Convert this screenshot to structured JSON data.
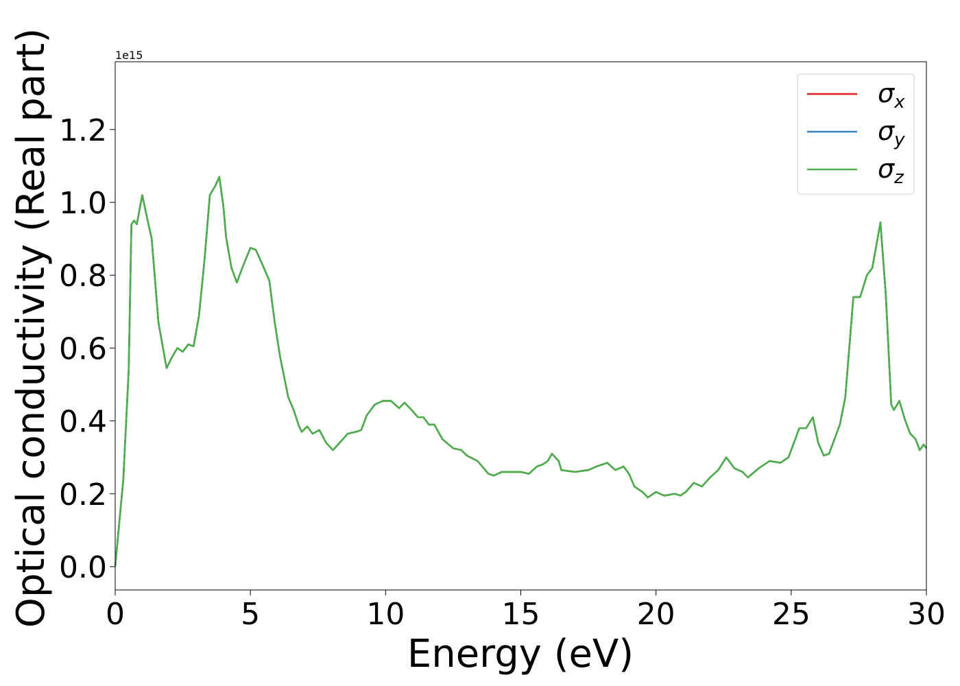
{
  "chart_data": {
    "type": "line",
    "xlabel": "Energy (eV)",
    "ylabel": "Optical conductivity (Real part)",
    "offset_text": "1e15",
    "xlim": [
      0,
      30
    ],
    "ylim": [
      -0.064,
      1.386
    ],
    "xticks": [
      0,
      5,
      10,
      15,
      20,
      25,
      30
    ],
    "yticks": [
      {
        "value": 0,
        "label": "0.0"
      },
      0.2,
      0.4,
      0.6,
      0.8,
      {
        "value": 1,
        "label": "1.0"
      },
      1.2
    ],
    "legend": "upper right",
    "x": [
      0,
      0.3,
      0.5,
      0.6,
      0.7,
      0.8,
      1.0,
      1.2,
      1.35,
      1.6,
      1.9,
      2.1,
      2.3,
      2.5,
      2.7,
      2.9,
      3.1,
      3.3,
      3.5,
      3.7,
      3.85,
      4.0,
      4.1,
      4.3,
      4.5,
      4.7,
      5.0,
      5.2,
      5.5,
      5.7,
      5.9,
      6.1,
      6.4,
      6.6,
      6.8,
      6.9,
      7.1,
      7.3,
      7.55,
      7.8,
      8.05,
      8.3,
      8.6,
      8.9,
      9.1,
      9.3,
      9.6,
      9.9,
      10.2,
      10.5,
      10.7,
      10.9,
      11.2,
      11.4,
      11.6,
      11.8,
      12.1,
      12.5,
      12.8,
      13.0,
      13.4,
      13.8,
      14.0,
      14.3,
      14.6,
      15.0,
      15.3,
      15.6,
      15.8,
      16.0,
      16.15,
      16.4,
      16.5,
      17.0,
      17.5,
      17.8,
      18.0,
      18.2,
      18.5,
      18.8,
      19.0,
      19.2,
      19.5,
      19.7,
      20.0,
      20.3,
      20.7,
      20.9,
      21.1,
      21.4,
      21.7,
      22.0,
      22.3,
      22.6,
      22.9,
      23.2,
      23.4,
      23.8,
      24.2,
      24.6,
      24.9,
      25.1,
      25.3,
      25.55,
      25.8,
      26.0,
      26.2,
      26.4,
      26.8,
      27.0,
      27.3,
      27.55,
      27.8,
      28.0,
      28.3,
      28.5,
      28.7,
      28.8,
      29.0,
      29.2,
      29.4,
      29.6,
      29.75,
      29.9,
      30
    ],
    "series": [
      {
        "name": "σx",
        "color": "#e41a1c",
        "values": [
          0,
          0.24,
          0.54,
          0.94,
          0.95,
          0.94,
          1.02,
          0.95,
          0.9,
          0.67,
          0.545,
          0.575,
          0.6,
          0.59,
          0.61,
          0.605,
          0.69,
          0.84,
          1.02,
          1.045,
          1.07,
          0.99,
          0.905,
          0.82,
          0.78,
          0.82,
          0.875,
          0.87,
          0.82,
          0.785,
          0.67,
          0.575,
          0.465,
          0.43,
          0.385,
          0.37,
          0.385,
          0.365,
          0.375,
          0.34,
          0.32,
          0.34,
          0.365,
          0.37,
          0.375,
          0.415,
          0.445,
          0.455,
          0.455,
          0.435,
          0.45,
          0.435,
          0.41,
          0.41,
          0.39,
          0.39,
          0.35,
          0.325,
          0.32,
          0.305,
          0.29,
          0.255,
          0.25,
          0.26,
          0.26,
          0.26,
          0.255,
          0.275,
          0.28,
          0.29,
          0.31,
          0.29,
          0.265,
          0.26,
          0.265,
          0.275,
          0.28,
          0.285,
          0.265,
          0.275,
          0.255,
          0.22,
          0.205,
          0.19,
          0.205,
          0.195,
          0.2,
          0.195,
          0.205,
          0.23,
          0.22,
          0.245,
          0.265,
          0.3,
          0.27,
          0.26,
          0.245,
          0.27,
          0.29,
          0.285,
          0.3,
          0.34,
          0.38,
          0.38,
          0.41,
          0.34,
          0.305,
          0.31,
          0.39,
          0.465,
          0.74,
          0.74,
          0.8,
          0.82,
          0.945,
          0.745,
          0.445,
          0.43,
          0.455,
          0.405,
          0.365,
          0.35,
          0.32,
          0.335,
          0.325
        ]
      },
      {
        "name": "σy",
        "color": "#377eb8",
        "values": [
          0,
          0.24,
          0.54,
          0.94,
          0.95,
          0.94,
          1.02,
          0.95,
          0.9,
          0.67,
          0.545,
          0.575,
          0.6,
          0.59,
          0.61,
          0.605,
          0.69,
          0.84,
          1.02,
          1.045,
          1.07,
          0.99,
          0.905,
          0.82,
          0.78,
          0.82,
          0.875,
          0.87,
          0.82,
          0.785,
          0.67,
          0.575,
          0.465,
          0.43,
          0.385,
          0.37,
          0.385,
          0.365,
          0.375,
          0.34,
          0.32,
          0.34,
          0.365,
          0.37,
          0.375,
          0.415,
          0.445,
          0.455,
          0.455,
          0.435,
          0.45,
          0.435,
          0.41,
          0.41,
          0.39,
          0.39,
          0.35,
          0.325,
          0.32,
          0.305,
          0.29,
          0.255,
          0.25,
          0.26,
          0.26,
          0.26,
          0.255,
          0.275,
          0.28,
          0.29,
          0.31,
          0.29,
          0.265,
          0.26,
          0.265,
          0.275,
          0.28,
          0.285,
          0.265,
          0.275,
          0.255,
          0.22,
          0.205,
          0.19,
          0.205,
          0.195,
          0.2,
          0.195,
          0.205,
          0.23,
          0.22,
          0.245,
          0.265,
          0.3,
          0.27,
          0.26,
          0.245,
          0.27,
          0.29,
          0.285,
          0.3,
          0.34,
          0.38,
          0.38,
          0.41,
          0.34,
          0.305,
          0.31,
          0.39,
          0.465,
          0.74,
          0.74,
          0.8,
          0.82,
          0.945,
          0.745,
          0.445,
          0.43,
          0.455,
          0.405,
          0.365,
          0.35,
          0.32,
          0.335,
          0.325
        ]
      },
      {
        "name": "σz",
        "color": "#4daf4a",
        "values": [
          0,
          0.24,
          0.54,
          0.94,
          0.95,
          0.94,
          1.02,
          0.95,
          0.9,
          0.67,
          0.545,
          0.575,
          0.6,
          0.59,
          0.61,
          0.605,
          0.69,
          0.84,
          1.02,
          1.045,
          1.07,
          0.99,
          0.905,
          0.82,
          0.78,
          0.82,
          0.875,
          0.87,
          0.82,
          0.785,
          0.67,
          0.575,
          0.465,
          0.43,
          0.385,
          0.37,
          0.385,
          0.365,
          0.375,
          0.34,
          0.32,
          0.34,
          0.365,
          0.37,
          0.375,
          0.415,
          0.445,
          0.455,
          0.455,
          0.435,
          0.45,
          0.435,
          0.41,
          0.41,
          0.39,
          0.39,
          0.35,
          0.325,
          0.32,
          0.305,
          0.29,
          0.255,
          0.25,
          0.26,
          0.26,
          0.26,
          0.255,
          0.275,
          0.28,
          0.29,
          0.31,
          0.29,
          0.265,
          0.26,
          0.265,
          0.275,
          0.28,
          0.285,
          0.265,
          0.275,
          0.255,
          0.22,
          0.205,
          0.19,
          0.205,
          0.195,
          0.2,
          0.195,
          0.205,
          0.23,
          0.22,
          0.245,
          0.265,
          0.3,
          0.27,
          0.26,
          0.245,
          0.27,
          0.29,
          0.285,
          0.3,
          0.34,
          0.38,
          0.38,
          0.41,
          0.34,
          0.305,
          0.31,
          0.39,
          0.465,
          0.74,
          0.74,
          0.8,
          0.82,
          0.945,
          0.745,
          0.445,
          0.43,
          0.455,
          0.405,
          0.365,
          0.35,
          0.32,
          0.335,
          0.325
        ]
      }
    ]
  }
}
